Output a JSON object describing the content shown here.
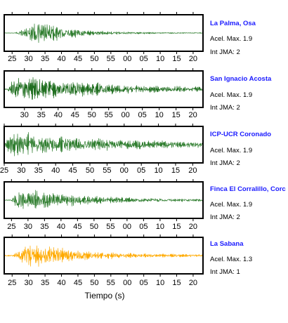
{
  "chart_data": {
    "type": "line",
    "xlabel": "Tiempo (s)",
    "acel_label": "Acel. Max.",
    "int_label": "Int JMA:",
    "panels": [
      {
        "station": "La Palma, Osa",
        "acel_max": "1.9",
        "int_jma": "2",
        "color": "#2e7d2e",
        "tick_labels": [
          "25",
          "30",
          "35",
          "40",
          "45",
          "50",
          "55",
          "00",
          "05",
          "10",
          "15",
          "20"
        ],
        "tick_seconds": [
          25,
          30,
          35,
          40,
          45,
          50,
          55,
          60,
          65,
          70,
          75,
          80
        ],
        "onset_seconds": 26,
        "peak_seconds": 33,
        "decay_seconds": 10,
        "peak_amplitude": 1.0,
        "noise_amplitude": 0.03
      },
      {
        "station": "San Ignacio Acosta",
        "acel_max": "1.9",
        "int_jma": "2",
        "color": "#1f6e1f",
        "tick_labels": [
          "30",
          "35",
          "40",
          "45",
          "50",
          "55",
          "00",
          "05",
          "10",
          "15",
          "20"
        ],
        "tick_seconds": [
          30,
          35,
          40,
          45,
          50,
          55,
          60,
          65,
          70,
          75,
          80
        ],
        "onset_seconds": 25,
        "peak_seconds": 27,
        "decay_seconds": 25,
        "peak_amplitude": 1.0,
        "noise_amplitude": 0.12
      },
      {
        "station": "ICP-UCR Coronado",
        "acel_max": "1.9",
        "int_jma": "2",
        "color": "#2e7d2e",
        "tick_labels": [
          "25",
          "30",
          "35",
          "40",
          "45",
          "50",
          "55",
          "00",
          "05",
          "10",
          "15",
          "20"
        ],
        "tick_seconds": [
          25,
          30,
          35,
          40,
          45,
          50,
          55,
          60,
          65,
          70,
          75,
          80
        ],
        "onset_seconds": 25,
        "peak_seconds": 27,
        "decay_seconds": 30,
        "peak_amplitude": 1.0,
        "noise_amplitude": 0.1
      },
      {
        "station": "Finca El Corralillo, Corc",
        "acel_max": "1.9",
        "int_jma": "2",
        "color": "#2e7d2e",
        "tick_labels": [
          "25",
          "30",
          "35",
          "40",
          "45",
          "50",
          "55",
          "00",
          "05",
          "10",
          "15",
          "20"
        ],
        "tick_seconds": [
          25,
          30,
          35,
          40,
          45,
          50,
          55,
          60,
          65,
          70,
          75,
          80
        ],
        "onset_seconds": 25,
        "peak_seconds": 27,
        "decay_seconds": 18,
        "peak_amplitude": 1.0,
        "noise_amplitude": 0.06
      },
      {
        "station": "La Sabana",
        "acel_max": "1.3",
        "int_jma": "1",
        "color": "#ffaa00",
        "tick_labels": [
          "25",
          "30",
          "35",
          "40",
          "45",
          "50",
          "55",
          "00",
          "05",
          "10",
          "15",
          "20"
        ],
        "tick_seconds": [
          25,
          30,
          35,
          40,
          45,
          50,
          55,
          60,
          65,
          70,
          75,
          80
        ],
        "onset_seconds": 25,
        "peak_seconds": 30,
        "decay_seconds": 15,
        "peak_amplitude": 1.0,
        "noise_amplitude": 0.08
      }
    ]
  }
}
